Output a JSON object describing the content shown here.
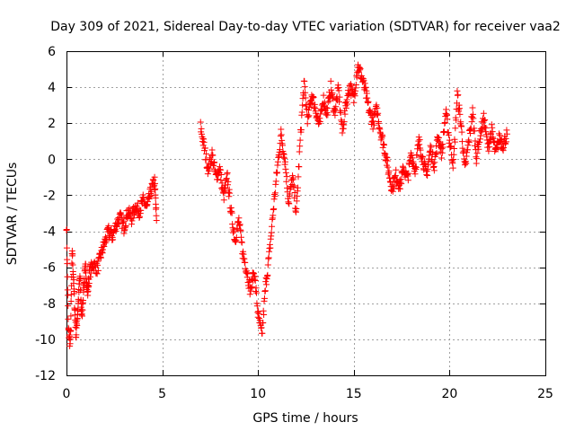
{
  "chart_data": {
    "type": "scatter",
    "title": "Day 309 of 2021, Sidereal Day-to-day VTEC variation (SDTVAR) for receiver vaa2",
    "xlabel": "GPS time / hours",
    "ylabel": "SDTVAR / TECUs",
    "xlim": [
      0,
      25
    ],
    "ylim": [
      -12,
      6
    ],
    "x_ticks": [
      0,
      5,
      10,
      15,
      20,
      25
    ],
    "x_tick_labels": [
      "0",
      "5",
      "10",
      "15",
      "20",
      "25"
    ],
    "y_ticks": [
      -12,
      -10,
      -8,
      -6,
      -4,
      -2,
      0,
      2,
      4,
      6
    ],
    "y_tick_labels": [
      "-12",
      "-10",
      "-8",
      "-6",
      "-4",
      "-2",
      "0",
      "2",
      "4",
      "6"
    ],
    "grid": true,
    "marker": "+",
    "marker_color": "#ff0000",
    "series": [
      {
        "name": "vaa2",
        "segments": [
          [
            [
              0.0,
              -3.6
            ],
            [
              0.1,
              -9.5
            ],
            [
              0.2,
              -10.3
            ],
            [
              0.3,
              -5.0
            ],
            [
              0.4,
              -7.5
            ],
            [
              0.5,
              -9.8
            ],
            [
              0.6,
              -8.2
            ],
            [
              0.7,
              -6.5
            ],
            [
              0.8,
              -8.8
            ],
            [
              0.9,
              -7.0
            ],
            [
              1.0,
              -6.0
            ],
            [
              1.1,
              -7.5
            ],
            [
              1.2,
              -6.3
            ],
            [
              1.4,
              -5.8
            ],
            [
              1.6,
              -6.1
            ],
            [
              1.8,
              -5.3
            ],
            [
              2.0,
              -4.6
            ],
            [
              2.2,
              -4.0
            ],
            [
              2.4,
              -4.3
            ],
            [
              2.6,
              -3.6
            ],
            [
              2.8,
              -3.2
            ],
            [
              3.0,
              -3.8
            ],
            [
              3.2,
              -2.9
            ],
            [
              3.4,
              -3.3
            ],
            [
              3.6,
              -2.6
            ],
            [
              3.8,
              -2.9
            ],
            [
              4.0,
              -2.3
            ],
            [
              4.2,
              -2.7
            ],
            [
              4.4,
              -1.8
            ],
            [
              4.6,
              -1.2
            ],
            [
              4.7,
              -3.4
            ]
          ],
          [
            [
              7.0,
              1.8
            ],
            [
              7.2,
              0.6
            ],
            [
              7.4,
              -0.6
            ],
            [
              7.6,
              0.3
            ],
            [
              7.8,
              -1.0
            ],
            [
              8.0,
              -0.5
            ],
            [
              8.2,
              -2.1
            ],
            [
              8.4,
              -1.0
            ],
            [
              8.6,
              -3.0
            ],
            [
              8.8,
              -4.5
            ],
            [
              9.0,
              -3.4
            ],
            [
              9.2,
              -5.2
            ],
            [
              9.4,
              -6.1
            ],
            [
              9.6,
              -7.3
            ],
            [
              9.8,
              -6.2
            ],
            [
              10.0,
              -8.6
            ],
            [
              10.2,
              -9.8
            ],
            [
              10.4,
              -7.0
            ],
            [
              10.6,
              -5.2
            ],
            [
              10.8,
              -2.8
            ],
            [
              11.0,
              -0.6
            ],
            [
              11.2,
              1.4
            ],
            [
              11.4,
              0.0
            ],
            [
              11.6,
              -2.4
            ],
            [
              11.8,
              -1.0
            ],
            [
              12.0,
              -3.0
            ],
            [
              12.2,
              1.0
            ],
            [
              12.4,
              4.2
            ],
            [
              12.6,
              2.1
            ],
            [
              12.8,
              3.6
            ],
            [
              13.0,
              2.8
            ],
            [
              13.2,
              1.8
            ],
            [
              13.4,
              3.4
            ],
            [
              13.6,
              2.5
            ],
            [
              13.8,
              4.0
            ],
            [
              14.0,
              2.6
            ],
            [
              14.2,
              3.9
            ],
            [
              14.4,
              1.5
            ],
            [
              14.6,
              3.1
            ],
            [
              14.8,
              4.1
            ],
            [
              15.0,
              3.3
            ],
            [
              15.2,
              5.2
            ],
            [
              15.4,
              4.6
            ],
            [
              15.6,
              3.8
            ],
            [
              15.8,
              2.7
            ],
            [
              16.0,
              2.0
            ],
            [
              16.2,
              2.8
            ],
            [
              16.4,
              1.5
            ],
            [
              16.6,
              0.6
            ],
            [
              16.8,
              -0.6
            ],
            [
              17.0,
              -1.6
            ],
            [
              17.2,
              -0.9
            ],
            [
              17.4,
              -1.5
            ],
            [
              17.6,
              -0.5
            ],
            [
              17.8,
              -1.1
            ],
            [
              18.0,
              0.3
            ],
            [
              18.2,
              -0.6
            ],
            [
              18.4,
              1.0
            ],
            [
              18.6,
              0.0
            ],
            [
              18.8,
              -0.9
            ],
            [
              19.0,
              0.6
            ],
            [
              19.2,
              -0.3
            ],
            [
              19.4,
              1.3
            ],
            [
              19.6,
              0.3
            ],
            [
              19.8,
              2.6
            ],
            [
              20.0,
              1.0
            ],
            [
              20.2,
              -0.3
            ],
            [
              20.4,
              3.6
            ],
            [
              20.6,
              1.9
            ],
            [
              20.8,
              -0.6
            ],
            [
              21.0,
              1.0
            ],
            [
              21.2,
              2.6
            ],
            [
              21.4,
              0.1
            ],
            [
              21.6,
              1.4
            ],
            [
              21.8,
              2.3
            ],
            [
              22.0,
              0.6
            ],
            [
              22.2,
              1.6
            ],
            [
              22.4,
              0.3
            ],
            [
              22.6,
              1.2
            ],
            [
              22.8,
              0.8
            ],
            [
              23.0,
              1.4
            ]
          ]
        ]
      }
    ]
  }
}
